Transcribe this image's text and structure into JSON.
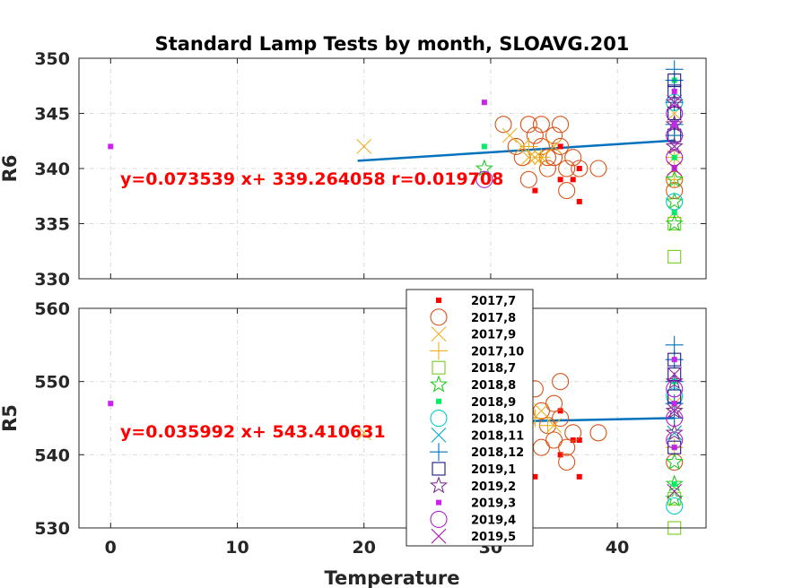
{
  "chart_data": {
    "type": "scatter",
    "title": "Standard Lamp Tests by month, SLOAVG.201",
    "xlabel": "Temperature",
    "xlim": [
      -2.5,
      47
    ],
    "xticks": [
      0,
      10,
      20,
      30,
      40
    ],
    "grid": true,
    "legend": {
      "placement": "center",
      "entries": [
        {
          "name": "2017,7",
          "marker": "square-filled",
          "color": "#ff0000"
        },
        {
          "name": "2017,8",
          "marker": "circle",
          "color": "#d95319"
        },
        {
          "name": "2017,9",
          "marker": "x",
          "color": "#edb120"
        },
        {
          "name": "2017,10",
          "marker": "plus",
          "color": "#edb120"
        },
        {
          "name": "2018,7",
          "marker": "square",
          "color": "#77cc22"
        },
        {
          "name": "2018,8",
          "marker": "star",
          "color": "#22cc22"
        },
        {
          "name": "2018,9",
          "marker": "square-filled",
          "color": "#00ee66"
        },
        {
          "name": "2018,10",
          "marker": "circle",
          "color": "#00cccc"
        },
        {
          "name": "2018,11",
          "marker": "x",
          "color": "#00aacc"
        },
        {
          "name": "2018,12",
          "marker": "plus",
          "color": "#0072bd"
        },
        {
          "name": "2019,1",
          "marker": "square",
          "color": "#1a1a80"
        },
        {
          "name": "2019,2",
          "marker": "star",
          "color": "#7e2f8e"
        },
        {
          "name": "2019,3",
          "marker": "square-filled",
          "color": "#cc22ee"
        },
        {
          "name": "2019,4",
          "marker": "circle",
          "color": "#aa22cc"
        },
        {
          "name": "2019,5",
          "marker": "x",
          "color": "#aa22aa"
        }
      ]
    },
    "panels": [
      {
        "ylabel": "R6",
        "ylim": [
          330,
          350
        ],
        "yticks": [
          330,
          335,
          340,
          345,
          350
        ],
        "fit": {
          "label": "y=0.073539 x+ 339.264058 r=0.019708",
          "slope": 0.073539,
          "intercept": 339.264058,
          "x_range": [
            19.5,
            44.5
          ],
          "color": "#0072bd"
        },
        "series": [
          {
            "name": "2017,7",
            "points": [
              [
                33.5,
                338
              ],
              [
                35.5,
                339
              ],
              [
                36.5,
                339
              ],
              [
                37,
                337
              ],
              [
                37,
                340
              ],
              [
                35.5,
                342
              ]
            ]
          },
          {
            "name": "2017,8",
            "points": [
              [
                31,
                344
              ],
              [
                32,
                342
              ],
              [
                32.5,
                341
              ],
              [
                33,
                344
              ],
              [
                33.5,
                343
              ],
              [
                34,
                344
              ],
              [
                34,
                342
              ],
              [
                34.5,
                340
              ],
              [
                35,
                343
              ],
              [
                35,
                341
              ],
              [
                35.5,
                344
              ],
              [
                35.5,
                342
              ],
              [
                36,
                340
              ],
              [
                36,
                338
              ],
              [
                36.5,
                341
              ],
              [
                37,
                340
              ],
              [
                38.5,
                340
              ],
              [
                33,
                339
              ],
              [
                34.5,
                341
              ],
              [
                44.5,
                339
              ],
              [
                44.5,
                338
              ]
            ]
          },
          {
            "name": "2017,9",
            "points": [
              [
                20,
                342
              ],
              [
                31.5,
                343
              ],
              [
                32.5,
                342
              ],
              [
                33,
                341
              ],
              [
                33.5,
                341
              ],
              [
                34,
                341
              ],
              [
                35,
                342
              ],
              [
                44.5,
                345
              ],
              [
                44.5,
                341
              ],
              [
                44.5,
                336
              ]
            ]
          },
          {
            "name": "2017,10",
            "points": [
              [
                33,
                342
              ],
              [
                34,
                341
              ],
              [
                44.5,
                343
              ],
              [
                44.5,
                341
              ],
              [
                44.5,
                339
              ]
            ]
          },
          {
            "name": "2018,7",
            "points": [
              [
                44.5,
                332
              ],
              [
                44.5,
                335
              ]
            ]
          },
          {
            "name": "2018,8",
            "points": [
              [
                29.5,
                340
              ],
              [
                44.5,
                335
              ],
              [
                44.5,
                337
              ],
              [
                44.5,
                339
              ]
            ]
          },
          {
            "name": "2018,9",
            "points": [
              [
                29.5,
                342
              ],
              [
                44.5,
                348
              ],
              [
                44.5,
                341
              ],
              [
                44.5,
                336
              ]
            ]
          },
          {
            "name": "2018,10",
            "points": [
              [
                44.5,
                337
              ],
              [
                44.5,
                346
              ]
            ]
          },
          {
            "name": "2018,11",
            "points": [
              [
                44.5,
                344
              ],
              [
                44.5,
                342
              ]
            ]
          },
          {
            "name": "2018,12",
            "points": [
              [
                44.5,
                349
              ],
              [
                44.5,
                348
              ],
              [
                44.5,
                346
              ],
              [
                44.5,
                344
              ],
              [
                44.5,
                343
              ]
            ]
          },
          {
            "name": "2019,1",
            "points": [
              [
                44.5,
                348
              ],
              [
                44.5,
                347
              ],
              [
                44.5,
                345
              ],
              [
                44.5,
                343
              ]
            ]
          },
          {
            "name": "2019,2",
            "points": [
              [
                44.5,
                346
              ],
              [
                44.5,
                344
              ],
              [
                44.5,
                342
              ]
            ]
          },
          {
            "name": "2019,3",
            "points": [
              [
                0,
                342
              ],
              [
                29.5,
                346
              ],
              [
                44.5,
                347
              ],
              [
                44.5,
                344
              ],
              [
                44.5,
                340
              ]
            ]
          },
          {
            "name": "2019,4",
            "points": [
              [
                29.5,
                339
              ],
              [
                44.5,
                345
              ],
              [
                44.5,
                343
              ],
              [
                44.5,
                341
              ]
            ]
          },
          {
            "name": "2019,5",
            "points": [
              [
                44.5,
                346
              ],
              [
                44.5,
                342
              ],
              [
                44.5,
                340
              ]
            ]
          }
        ]
      },
      {
        "ylabel": "R5",
        "ylim": [
          530,
          560
        ],
        "yticks": [
          530,
          540,
          550,
          560
        ],
        "fit": {
          "label": "y=0.035992 x+ 543.410631",
          "slope": 0.035992,
          "intercept": 543.410631,
          "x_range": [
            33,
            44.5
          ],
          "color": "#0072bd"
        },
        "series": [
          {
            "name": "2017,7",
            "points": [
              [
                33.5,
                537
              ],
              [
                35.5,
                540
              ],
              [
                36.5,
                542
              ],
              [
                37,
                537
              ],
              [
                37,
                542
              ],
              [
                35.5,
                546
              ]
            ]
          },
          {
            "name": "2017,8",
            "points": [
              [
                33.5,
                549
              ],
              [
                34,
                546
              ],
              [
                34.5,
                544
              ],
              [
                35,
                547
              ],
              [
                35,
                542
              ],
              [
                35.5,
                550
              ],
              [
                35.5,
                545
              ],
              [
                36,
                541
              ],
              [
                36,
                539
              ],
              [
                36.5,
                543
              ],
              [
                34,
                541
              ],
              [
                38.5,
                543
              ],
              [
                44.5,
                539
              ]
            ]
          },
          {
            "name": "2017,9",
            "points": [
              [
                20,
                543
              ],
              [
                33,
                545
              ],
              [
                34,
                546
              ],
              [
                35,
                544
              ],
              [
                44.5,
                547
              ],
              [
                44.5,
                543
              ]
            ]
          },
          {
            "name": "2017,10",
            "points": [
              [
                33.5,
                545
              ],
              [
                34.5,
                544
              ],
              [
                44.5,
                545
              ],
              [
                44.5,
                541
              ]
            ]
          },
          {
            "name": "2018,7",
            "points": [
              [
                44.5,
                530
              ],
              [
                44.5,
                534
              ]
            ]
          },
          {
            "name": "2018,8",
            "points": [
              [
                44.5,
                534
              ],
              [
                44.5,
                536
              ],
              [
                44.5,
                539
              ]
            ]
          },
          {
            "name": "2018,9",
            "points": [
              [
                44.5,
                550
              ],
              [
                44.5,
                541
              ],
              [
                44.5,
                536
              ]
            ]
          },
          {
            "name": "2018,10",
            "points": [
              [
                44.5,
                533
              ],
              [
                44.5,
                548
              ]
            ]
          },
          {
            "name": "2018,11",
            "points": [
              [
                44.5,
                546
              ],
              [
                44.5,
                543
              ]
            ]
          },
          {
            "name": "2018,12",
            "points": [
              [
                44.5,
                555
              ],
              [
                44.5,
                553
              ],
              [
                44.5,
                550
              ],
              [
                44.5,
                547
              ],
              [
                44.5,
                545
              ]
            ]
          },
          {
            "name": "2019,1",
            "points": [
              [
                44.5,
                553
              ],
              [
                44.5,
                551
              ],
              [
                44.5,
                548
              ],
              [
                44.5,
                541
              ]
            ]
          },
          {
            "name": "2019,2",
            "points": [
              [
                44.5,
                550
              ],
              [
                44.5,
                546
              ],
              [
                44.5,
                543
              ]
            ]
          },
          {
            "name": "2019,3",
            "points": [
              [
                0,
                547
              ],
              [
                44.5,
                553
              ],
              [
                44.5,
                547
              ],
              [
                44.5,
                541
              ]
            ]
          },
          {
            "name": "2019,4",
            "points": [
              [
                44.5,
                549
              ],
              [
                44.5,
                545
              ],
              [
                44.5,
                542
              ]
            ]
          },
          {
            "name": "2019,5",
            "points": [
              [
                44.5,
                551
              ],
              [
                44.5,
                546
              ],
              [
                44.5,
                535
              ]
            ]
          }
        ]
      }
    ]
  }
}
